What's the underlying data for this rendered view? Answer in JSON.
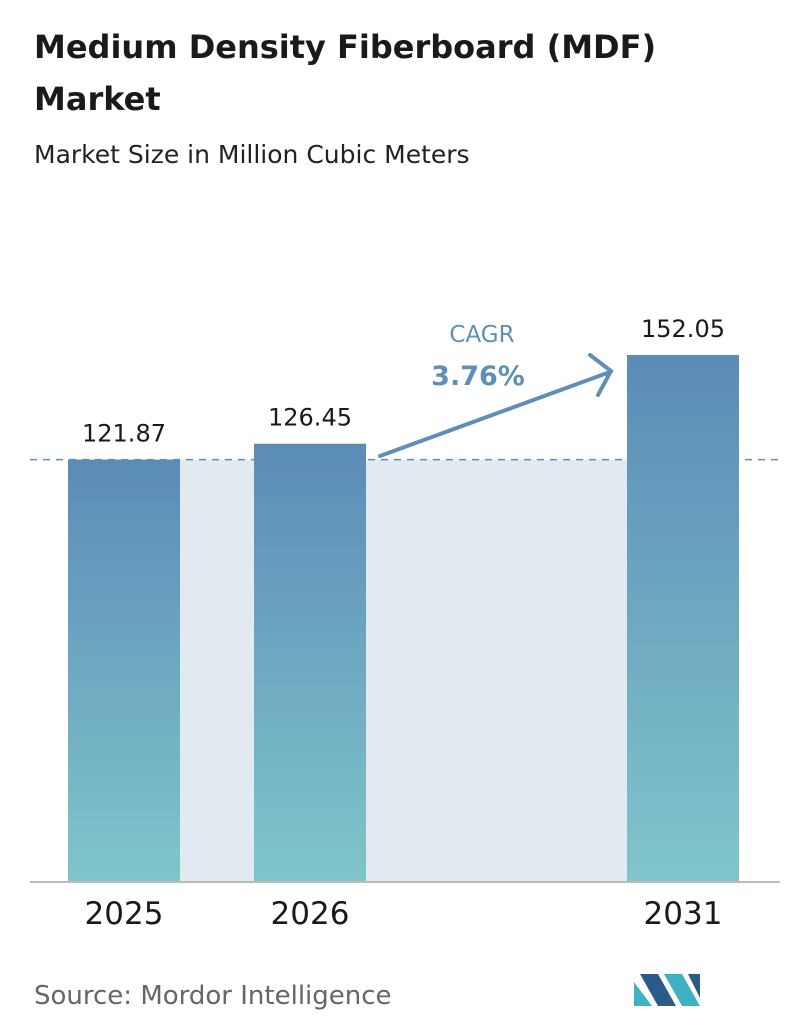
{
  "chart_data": {
    "type": "bar",
    "title_lines": [
      "Medium Density Fiberboard (MDF)",
      "Market"
    ],
    "subtitle": "Market Size in Million Cubic Meters",
    "categories": [
      "2025",
      "2026",
      "2031"
    ],
    "values": [
      121.87,
      126.45,
      152.05
    ],
    "annotation": {
      "label": "CAGR",
      "text": "3.76%"
    },
    "source": "Source:  Mordor Intelligence"
  }
}
